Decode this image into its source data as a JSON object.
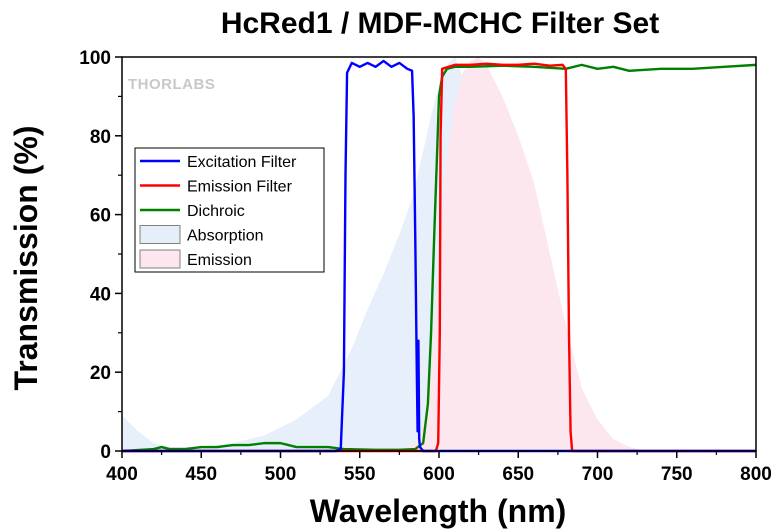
{
  "chart_data": {
    "type": "line",
    "title": "HcRed1 / MDF-MCHC Filter Set",
    "xlabel": "Wavelength (nm)",
    "ylabel": "Transmission (%)",
    "xlim": [
      400,
      800
    ],
    "ylim": [
      0,
      100
    ],
    "x_ticks": [
      400,
      450,
      500,
      550,
      600,
      650,
      700,
      750,
      800
    ],
    "y_ticks": [
      0,
      20,
      40,
      60,
      80,
      100
    ],
    "grid": false,
    "legend_position": "upper-left",
    "watermark": "THORLABS",
    "series": [
      {
        "name": "Excitation Filter",
        "kind": "line",
        "color": "#0000ff",
        "points": [
          [
            400,
            0
          ],
          [
            535,
            0
          ],
          [
            538,
            0.5
          ],
          [
            540,
            20
          ],
          [
            541,
            70
          ],
          [
            542,
            96
          ],
          [
            545,
            98.5
          ],
          [
            550,
            97.5
          ],
          [
            555,
            98.5
          ],
          [
            560,
            97.5
          ],
          [
            565,
            99
          ],
          [
            570,
            97.5
          ],
          [
            575,
            98.5
          ],
          [
            580,
            97
          ],
          [
            583,
            96.5
          ],
          [
            584,
            85
          ],
          [
            585,
            55
          ],
          [
            586,
            20
          ],
          [
            586.5,
            5
          ],
          [
            587,
            28
          ],
          [
            587.5,
            3
          ],
          [
            588,
            1
          ],
          [
            590,
            0
          ],
          [
            800,
            0
          ]
        ]
      },
      {
        "name": "Emission Filter",
        "kind": "line",
        "color": "#ff0000",
        "points": [
          [
            400,
            0
          ],
          [
            598,
            0
          ],
          [
            599.5,
            2
          ],
          [
            600.5,
            30
          ],
          [
            601,
            80
          ],
          [
            602,
            97
          ],
          [
            610,
            98
          ],
          [
            620,
            98
          ],
          [
            630,
            98.3
          ],
          [
            640,
            98
          ],
          [
            650,
            98
          ],
          [
            660,
            98.3
          ],
          [
            670,
            97.8
          ],
          [
            678,
            98
          ],
          [
            680,
            97
          ],
          [
            681,
            70
          ],
          [
            682,
            30
          ],
          [
            683,
            5
          ],
          [
            684,
            0
          ],
          [
            800,
            0
          ]
        ]
      },
      {
        "name": "Dichroic",
        "kind": "line",
        "color": "#008000",
        "points": [
          [
            400,
            0
          ],
          [
            420,
            0.5
          ],
          [
            425,
            1
          ],
          [
            430,
            0.5
          ],
          [
            440,
            0.5
          ],
          [
            450,
            1
          ],
          [
            460,
            1
          ],
          [
            470,
            1.5
          ],
          [
            480,
            1.5
          ],
          [
            490,
            2
          ],
          [
            500,
            2
          ],
          [
            505,
            1.5
          ],
          [
            510,
            1
          ],
          [
            520,
            1
          ],
          [
            530,
            1
          ],
          [
            540,
            0.5
          ],
          [
            560,
            0.3
          ],
          [
            575,
            0.3
          ],
          [
            585,
            0.5
          ],
          [
            590,
            2
          ],
          [
            593,
            12
          ],
          [
            595,
            30
          ],
          [
            597,
            55
          ],
          [
            599,
            78
          ],
          [
            600,
            90
          ],
          [
            602,
            95
          ],
          [
            605,
            97
          ],
          [
            610,
            97.5
          ],
          [
            620,
            97.5
          ],
          [
            640,
            97.8
          ],
          [
            660,
            97.5
          ],
          [
            680,
            97
          ],
          [
            690,
            98
          ],
          [
            700,
            97
          ],
          [
            710,
            97.5
          ],
          [
            720,
            96.5
          ],
          [
            740,
            97
          ],
          [
            760,
            97
          ],
          [
            780,
            97.5
          ],
          [
            800,
            98
          ]
        ]
      },
      {
        "name": "Absorption",
        "kind": "area",
        "color": "#e6eefa",
        "points": [
          [
            400,
            9
          ],
          [
            410,
            5
          ],
          [
            420,
            2
          ],
          [
            430,
            1
          ],
          [
            450,
            1
          ],
          [
            470,
            2
          ],
          [
            490,
            4
          ],
          [
            510,
            8
          ],
          [
            530,
            14
          ],
          [
            545,
            26
          ],
          [
            555,
            36
          ],
          [
            565,
            45
          ],
          [
            575,
            55
          ],
          [
            583,
            64
          ],
          [
            590,
            76
          ],
          [
            595,
            85
          ],
          [
            600,
            93
          ],
          [
            605,
            98
          ],
          [
            610,
            100
          ],
          [
            615,
            95
          ],
          [
            620,
            82
          ],
          [
            625,
            62
          ],
          [
            630,
            42
          ],
          [
            635,
            25
          ],
          [
            640,
            12
          ],
          [
            645,
            5
          ],
          [
            650,
            2
          ],
          [
            660,
            1
          ],
          [
            700,
            0
          ],
          [
            800,
            0
          ]
        ]
      },
      {
        "name": "Emission",
        "kind": "area",
        "color": "#fde6ee",
        "points": [
          [
            400,
            0
          ],
          [
            575,
            0
          ],
          [
            585,
            2
          ],
          [
            590,
            6
          ],
          [
            595,
            20
          ],
          [
            600,
            50
          ],
          [
            605,
            75
          ],
          [
            610,
            88
          ],
          [
            615,
            96
          ],
          [
            620,
            99
          ],
          [
            625,
            100
          ],
          [
            630,
            98
          ],
          [
            640,
            90
          ],
          [
            650,
            80
          ],
          [
            660,
            68
          ],
          [
            670,
            50
          ],
          [
            680,
            32
          ],
          [
            690,
            16
          ],
          [
            700,
            8
          ],
          [
            710,
            3
          ],
          [
            720,
            1
          ],
          [
            730,
            0
          ],
          [
            800,
            0
          ]
        ]
      }
    ]
  }
}
